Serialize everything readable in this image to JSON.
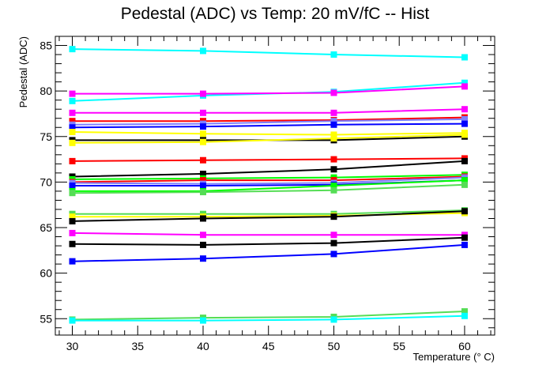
{
  "chart_data": {
    "type": "line",
    "title": "Pedestal (ADC) vs Temp: 20 mV/fC -- Hist",
    "xlabel": "Temperature (° C)",
    "ylabel": "Pedestal (ADC)",
    "xlim": [
      28.7,
      62.3
    ],
    "ylim": [
      53.2,
      86.0
    ],
    "x_ticks": [
      30,
      35,
      40,
      45,
      50,
      55,
      60
    ],
    "y_ticks": [
      55,
      60,
      65,
      70,
      75,
      80,
      85
    ],
    "x": [
      30,
      40,
      50,
      60
    ],
    "grid": false,
    "legend": "none",
    "series": [
      {
        "color": "#00ffff",
        "values": [
          84.6,
          84.4,
          84.0,
          83.7
        ]
      },
      {
        "color": "#00ffff",
        "values": [
          78.9,
          79.5,
          79.9,
          80.9
        ]
      },
      {
        "color": "#ff00ff",
        "values": [
          79.7,
          79.7,
          79.8,
          80.5
        ]
      },
      {
        "color": "#ff00ff",
        "values": [
          77.6,
          77.6,
          77.6,
          78.0
        ]
      },
      {
        "color": "#ff0000",
        "values": [
          76.7,
          76.7,
          76.8,
          77.1
        ]
      },
      {
        "color": "#7f7fff",
        "values": [
          76.3,
          76.4,
          76.7,
          76.9
        ]
      },
      {
        "color": "#0000ff",
        "values": [
          76.0,
          76.1,
          76.3,
          76.4
        ]
      },
      {
        "color": "#ffff00",
        "values": [
          75.5,
          75.3,
          75.2,
          75.4
        ]
      },
      {
        "color": "#000000",
        "values": [
          74.6,
          74.6,
          74.6,
          75.0
        ]
      },
      {
        "color": "#ffff00",
        "values": [
          74.3,
          74.4,
          74.8,
          75.2
        ]
      },
      {
        "color": "#ff0000",
        "values": [
          72.3,
          72.4,
          72.5,
          72.6
        ]
      },
      {
        "color": "#000000",
        "values": [
          70.6,
          70.9,
          71.4,
          72.3
        ]
      },
      {
        "color": "#00ff00",
        "values": [
          70.3,
          70.4,
          70.5,
          70.8
        ]
      },
      {
        "color": "#ff0000",
        "values": [
          70.0,
          70.2,
          70.2,
          70.6
        ]
      },
      {
        "color": "#7f7fff",
        "values": [
          69.9,
          69.8,
          69.9,
          70.5
        ]
      },
      {
        "color": "#0000ff",
        "values": [
          69.6,
          69.6,
          69.7,
          70.2
        ]
      },
      {
        "color": "#00ff00",
        "values": [
          69.0,
          69.0,
          69.6,
          70.2
        ]
      },
      {
        "color": "#55dd55",
        "values": [
          68.8,
          68.9,
          69.1,
          69.7
        ]
      },
      {
        "color": "#55dd55",
        "values": [
          66.5,
          66.5,
          66.5,
          66.9
        ]
      },
      {
        "color": "#ffff00",
        "values": [
          66.2,
          66.2,
          66.3,
          66.6
        ]
      },
      {
        "color": "#000000",
        "values": [
          65.7,
          66.0,
          66.2,
          66.8
        ]
      },
      {
        "color": "#ff00ff",
        "values": [
          64.4,
          64.2,
          64.2,
          64.2
        ]
      },
      {
        "color": "#000000",
        "values": [
          63.2,
          63.1,
          63.3,
          63.9
        ]
      },
      {
        "color": "#0000ff",
        "values": [
          61.3,
          61.6,
          62.1,
          63.1
        ]
      },
      {
        "color": "#55dd55",
        "values": [
          54.9,
          55.1,
          55.2,
          55.8
        ]
      },
      {
        "color": "#00ffff",
        "values": [
          54.8,
          54.8,
          54.9,
          55.3
        ]
      }
    ]
  }
}
